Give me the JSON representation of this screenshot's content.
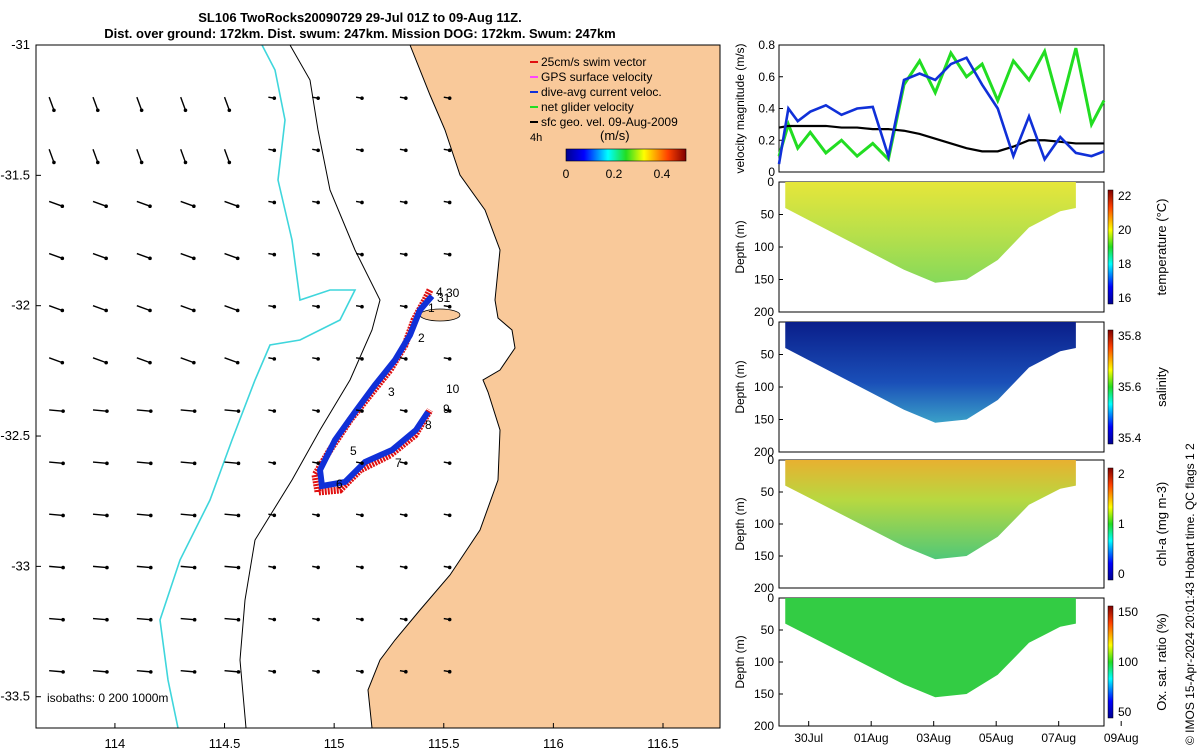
{
  "title_line1": "SL106 TwoRocks20090729 29-Jul 01Z to 09-Aug 11Z.",
  "title_line2": "Dist. over ground: 172km. Dist. swum: 247km. Mission DOG: 172km. Swum: 247km",
  "copyright": "© IMOS 15-Apr-2024 20:01:43 Hobart time. QC flags 1  2",
  "colors": {
    "land": "#f9c99a",
    "isobath_200": "#000000",
    "isobath_1000": "#3fd6dc",
    "track_red": "#e01010",
    "track_blue": "#1030d8",
    "glider_green": "#22dd22"
  },
  "map": {
    "lon_ticks": [
      "114",
      "114.5",
      "115",
      "115.5",
      "116",
      "116.5"
    ],
    "lat_ticks": [
      "-31",
      "-31.5",
      "-32",
      "-32.5",
      "-33",
      "-33.5"
    ],
    "xlim": [
      113.64,
      116.76
    ],
    "ylim": [
      -33.62,
      -31.0
    ],
    "isobaths_label": "isobaths: 0   200   1000m",
    "legend": [
      {
        "label": "25cm/s swim vector",
        "color": "#e01010"
      },
      {
        "label": "GPS surface velocity",
        "color": "#ff44ff"
      },
      {
        "label": "dive-avg current veloc.",
        "color": "#1030d8"
      },
      {
        "label": "net glider velocity",
        "color": "#22dd22"
      },
      {
        "label": "sfc geo. vel. 09-Aug-2009",
        "color": "#000000"
      }
    ],
    "legend_extra": "4h",
    "colorbar_label": "(m/s)",
    "colorbar_ticks": [
      "0",
      "0.2",
      "0.4"
    ],
    "day_labels": [
      "1",
      "2",
      "3",
      "4",
      "5",
      "6",
      "7",
      "8",
      "9",
      "10",
      "30",
      "31"
    ]
  },
  "chart_data": [
    {
      "type": "line",
      "ylabel": "velocity magnitude (m/s)",
      "ylim": [
        0,
        0.8
      ],
      "yticks": [
        "0",
        "0.2",
        "0.4",
        "0.6",
        "0.8"
      ],
      "x_days": [
        0,
        0.3,
        0.6,
        1.0,
        1.5,
        2.0,
        2.5,
        3.0,
        3.5,
        4.0,
        4.5,
        5.0,
        5.5,
        6.0,
        6.5,
        7.0,
        7.5,
        8.0,
        8.5,
        9.0,
        9.5,
        10.0,
        10.4
      ],
      "series": [
        {
          "values": [
            0.28,
            0.29,
            0.29,
            0.29,
            0.29,
            0.28,
            0.28,
            0.27,
            0.27,
            0.26,
            0.24,
            0.21,
            0.18,
            0.15,
            0.13,
            0.13,
            0.16,
            0.2,
            0.2,
            0.19,
            0.18,
            0.18,
            0.18
          ]
        },
        {
          "values": [
            0.05,
            0.4,
            0.32,
            0.38,
            0.42,
            0.36,
            0.4,
            0.41,
            0.1,
            0.58,
            0.62,
            0.58,
            0.68,
            0.72,
            0.55,
            0.4,
            0.1,
            0.35,
            0.08,
            0.22,
            0.12,
            0.1,
            0.13
          ]
        },
        {
          "values": [
            0.1,
            0.3,
            0.15,
            0.25,
            0.12,
            0.2,
            0.1,
            0.18,
            0.08,
            0.55,
            0.7,
            0.5,
            0.75,
            0.6,
            0.68,
            0.45,
            0.7,
            0.58,
            0.76,
            0.4,
            0.78,
            0.3,
            0.45
          ]
        }
      ]
    },
    {
      "type": "heatmap",
      "ylabel": "Depth (m)",
      "yticks": [
        "0",
        "50",
        "100",
        "150",
        "200"
      ],
      "cbar_label": "temperature (°C)",
      "cbar_ticks": [
        "16",
        "18",
        "20",
        "22"
      ]
    },
    {
      "type": "heatmap",
      "ylabel": "Depth (m)",
      "yticks": [
        "0",
        "50",
        "100",
        "150",
        "200"
      ],
      "cbar_label": "salinity",
      "cbar_ticks": [
        "35.4",
        "35.6",
        "35.8"
      ]
    },
    {
      "type": "heatmap",
      "ylabel": "Depth (m)",
      "yticks": [
        "0",
        "50",
        "100",
        "150",
        "200"
      ],
      "cbar_label": "chl-a (mg m-3)",
      "cbar_ticks": [
        "0",
        "1",
        "2"
      ]
    },
    {
      "type": "heatmap",
      "ylabel": "Depth (m)",
      "yticks": [
        "0",
        "50",
        "100",
        "150",
        "200"
      ],
      "cbar_label": "Ox. sat. ratio (%)",
      "cbar_ticks": [
        "50",
        "100",
        "150"
      ]
    }
  ],
  "time_ticks": [
    "30Jul",
    "01Aug",
    "03Aug",
    "05Aug",
    "07Aug",
    "09Aug"
  ]
}
